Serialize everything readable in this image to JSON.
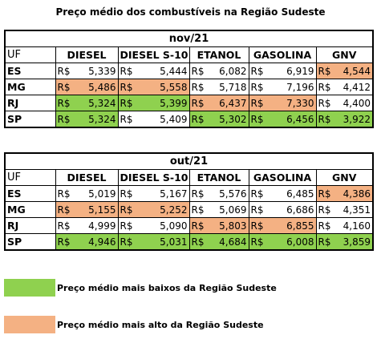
{
  "title": "Preço médio dos combustíveis na Região Sudeste",
  "colors": {
    "low": "#8fd14f",
    "high": "#f4b183"
  },
  "tables": [
    {
      "period": "nov/21",
      "headers": [
        "UF",
        "DIESEL",
        "DIESEL S-10",
        "ETANOL",
        "GASOLINA",
        "GNV"
      ],
      "rows": [
        {
          "uf": "ES",
          "cells": [
            {
              "cur": "R$",
              "val": "5,339",
              "hl": ""
            },
            {
              "cur": "R$",
              "val": "5,444",
              "hl": ""
            },
            {
              "cur": "R$",
              "val": "6,082",
              "hl": ""
            },
            {
              "cur": "R$",
              "val": "6,919",
              "hl": ""
            },
            {
              "cur": "R$",
              "val": "4,544",
              "hl": "high"
            }
          ]
        },
        {
          "uf": "MG",
          "cells": [
            {
              "cur": "R$",
              "val": "5,486",
              "hl": "high"
            },
            {
              "cur": "R$",
              "val": "5,558",
              "hl": "high"
            },
            {
              "cur": "R$",
              "val": "5,718",
              "hl": ""
            },
            {
              "cur": "R$",
              "val": "7,196",
              "hl": ""
            },
            {
              "cur": "R$",
              "val": "4,412",
              "hl": ""
            }
          ]
        },
        {
          "uf": "RJ",
          "cells": [
            {
              "cur": "R$",
              "val": "5,324",
              "hl": "low"
            },
            {
              "cur": "R$",
              "val": "5,399",
              "hl": "low"
            },
            {
              "cur": "R$",
              "val": "6,437",
              "hl": "high"
            },
            {
              "cur": "R$",
              "val": "7,330",
              "hl": "high"
            },
            {
              "cur": "R$",
              "val": "4,400",
              "hl": ""
            }
          ]
        },
        {
          "uf": "SP",
          "cells": [
            {
              "cur": "R$",
              "val": "5,324",
              "hl": "low"
            },
            {
              "cur": "R$",
              "val": "5,409",
              "hl": ""
            },
            {
              "cur": "R$",
              "val": "5,302",
              "hl": "low"
            },
            {
              "cur": "R$",
              "val": "6,456",
              "hl": "low"
            },
            {
              "cur": "R$",
              "val": "3,922",
              "hl": "low"
            }
          ]
        }
      ]
    },
    {
      "period": "out/21",
      "headers": [
        "UF",
        "DIESEL",
        "DIESEL S-10",
        "ETANOL",
        "GASOLINA",
        "GNV"
      ],
      "rows": [
        {
          "uf": "ES",
          "cells": [
            {
              "cur": "R$",
              "val": "5,019",
              "hl": ""
            },
            {
              "cur": "R$",
              "val": "5,167",
              "hl": ""
            },
            {
              "cur": "R$",
              "val": "5,576",
              "hl": ""
            },
            {
              "cur": "R$",
              "val": "6,485",
              "hl": ""
            },
            {
              "cur": "R$",
              "val": "4,386",
              "hl": "high"
            }
          ]
        },
        {
          "uf": "MG",
          "cells": [
            {
              "cur": "R$",
              "val": "5,155",
              "hl": "high"
            },
            {
              "cur": "R$",
              "val": "5,252",
              "hl": "high"
            },
            {
              "cur": "R$",
              "val": "5,069",
              "hl": ""
            },
            {
              "cur": "R$",
              "val": "6,686",
              "hl": ""
            },
            {
              "cur": "R$",
              "val": "4,351",
              "hl": ""
            }
          ]
        },
        {
          "uf": "RJ",
          "cells": [
            {
              "cur": "R$",
              "val": "4,999",
              "hl": ""
            },
            {
              "cur": "R$",
              "val": "5,090",
              "hl": ""
            },
            {
              "cur": "R$",
              "val": "5,803",
              "hl": "high"
            },
            {
              "cur": "R$",
              "val": "6,855",
              "hl": "high"
            },
            {
              "cur": "R$",
              "val": "4,160",
              "hl": ""
            }
          ]
        },
        {
          "uf": "SP",
          "cells": [
            {
              "cur": "R$",
              "val": "4,946",
              "hl": "low"
            },
            {
              "cur": "R$",
              "val": "5,031",
              "hl": "low"
            },
            {
              "cur": "R$",
              "val": "4,684",
              "hl": "low"
            },
            {
              "cur": "R$",
              "val": "6,008",
              "hl": "low"
            },
            {
              "cur": "R$",
              "val": "3,859",
              "hl": "low"
            }
          ]
        }
      ]
    }
  ],
  "legend": {
    "low": "Preço médio mais baixos da Região Sudeste",
    "high": "Preço médio mais alto da Região Sudeste"
  }
}
